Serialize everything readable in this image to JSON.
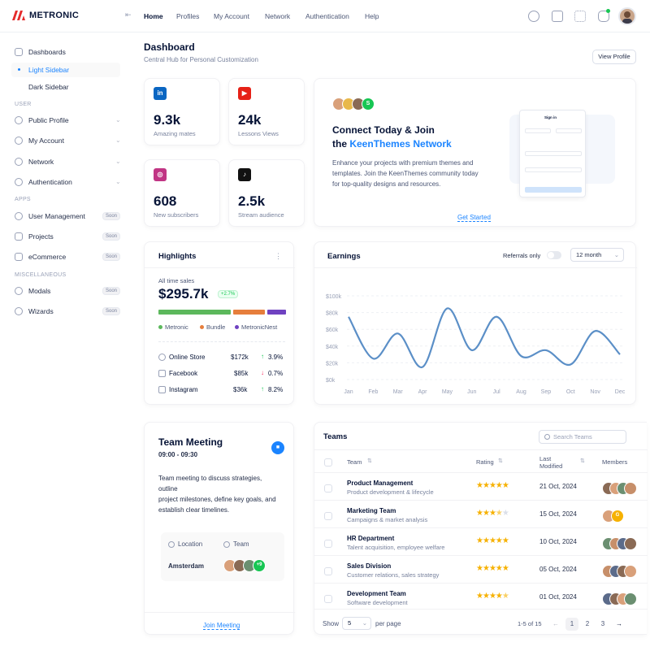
{
  "brand": {
    "name": "METRONIC",
    "accent": "#1b84ff",
    "logo_color": "#e52b2b"
  },
  "header": {
    "nav": [
      "Home",
      "Profiles",
      "My Account",
      "Network",
      "Authentication",
      "Help"
    ],
    "icons": [
      "search-icon",
      "chat-icon",
      "apps-icon",
      "notification-icon"
    ]
  },
  "sidebar": {
    "dashboards": "Dashboards",
    "light_sidebar": "Light Sidebar",
    "dark_sidebar": "Dark Sidebar",
    "section_user": "USER",
    "public_profile": "Public Profile",
    "my_account": "My Account",
    "network": "Network",
    "authentication": "Authentication",
    "section_apps": "APPS",
    "user_management": "User Management",
    "projects": "Projects",
    "ecommerce": "eCommerce",
    "section_misc": "MISCELLANEOUS",
    "modals": "Modals",
    "wizards": "Wizards",
    "soon": "Soon"
  },
  "page": {
    "title": "Dashboard",
    "subtitle": "Central Hub for Personal Customization",
    "view_profile": "View Profile"
  },
  "stats": [
    {
      "value": "9.3k",
      "label": "Amazing mates",
      "icon": "linkedin-icon"
    },
    {
      "value": "24k",
      "label": "Lessons Views",
      "icon": "youtube-icon"
    },
    {
      "value": "608",
      "label": "New subscribers",
      "icon": "instagram-icon"
    },
    {
      "value": "2.5k",
      "label": "Stream audience",
      "icon": "tiktok-icon"
    }
  ],
  "connect": {
    "title_line1": "Connect Today & Join",
    "title_line2_prefix": "the ",
    "title_line2_link": "KeenThemes Network",
    "body_line1": "Enhance your projects with premium themes and",
    "body_line2": "templates. Join the KeenThemes community today",
    "body_line3": "for top-quality designs and resources.",
    "cta": "Get Started",
    "avatar_more": "S",
    "preview_title": "Sign in"
  },
  "highlights": {
    "title": "Highlights",
    "all_time": "All time sales",
    "amount": "$295.7k",
    "delta": "+2.7%",
    "legend": [
      "Metronic",
      "Bundle",
      "MetronicNest"
    ],
    "bar_colors": [
      "#5cb85c",
      "#e67e3c",
      "#6f42c1"
    ],
    "bar_shares": [
      0.57,
      0.25,
      0.15
    ],
    "rows": [
      {
        "name": "Online Store",
        "amount": "$172k",
        "arrow": "↑",
        "pct": "3.9%"
      },
      {
        "name": "Facebook",
        "amount": "$85k",
        "arrow": "↓",
        "pct": "0.7%"
      },
      {
        "name": "Instagram",
        "amount": "$36k",
        "arrow": "↑",
        "pct": "8.2%"
      }
    ]
  },
  "earnings": {
    "title": "Earnings",
    "referrals": "Referrals only",
    "period": "12 month"
  },
  "chart_data": {
    "type": "line",
    "categories": [
      "Jan",
      "Feb",
      "Mar",
      "Apr",
      "May",
      "Jun",
      "Jul",
      "Aug",
      "Sep",
      "Oct",
      "Nov",
      "Dec"
    ],
    "y_ticks": [
      "$100k",
      "$80k",
      "$60k",
      "$40k",
      "$20k",
      "$0k"
    ],
    "ylim": [
      0,
      100
    ],
    "series": [
      {
        "values": [
          75,
          25,
          55,
          15,
          85,
          35,
          75,
          28,
          35,
          18,
          58,
          30
        ]
      }
    ],
    "color": "#5b8fc7",
    "grid": true
  },
  "meeting": {
    "title": "Team Meeting",
    "time": "09:00 - 09:30",
    "desc_line1": "Team meeting to discuss strategies,",
    "desc_line2": "outline",
    "desc_line3": "project milestones, define key goals, and",
    "desc_line4": "establish clear timelines.",
    "location_label": "Location",
    "team_label": "Team",
    "location": "Amsterdam",
    "team_more": "+9",
    "join": "Join Meeting"
  },
  "teams": {
    "title": "Teams",
    "search_placeholder": "Search Teams",
    "columns": [
      "Team",
      "Rating",
      "Last Modified",
      "Members"
    ],
    "rows": [
      {
        "name": "Product Management",
        "desc": "Product development & lifecycle",
        "rating": 5,
        "date": "21 Oct, 2024",
        "more": ""
      },
      {
        "name": "Marketing Team",
        "desc": "Campaigns & market analysis",
        "rating": 3.5,
        "date": "15 Oct, 2024",
        "more": "G"
      },
      {
        "name": "HR Department",
        "desc": "Talent acquisition, employee welfare",
        "rating": 5,
        "date": "10 Oct, 2024",
        "more": ""
      },
      {
        "name": "Sales Division",
        "desc": "Customer relations, sales strategy",
        "rating": 5,
        "date": "05 Oct, 2024",
        "more": ""
      },
      {
        "name": "Development Team",
        "desc": "Software development",
        "rating": 4.5,
        "date": "01 Oct, 2024",
        "more": ""
      }
    ],
    "show": "Show",
    "per_page_value": "5",
    "per_page": "per page",
    "range": "1-5 of 15",
    "pages": [
      "1",
      "2",
      "3"
    ]
  }
}
